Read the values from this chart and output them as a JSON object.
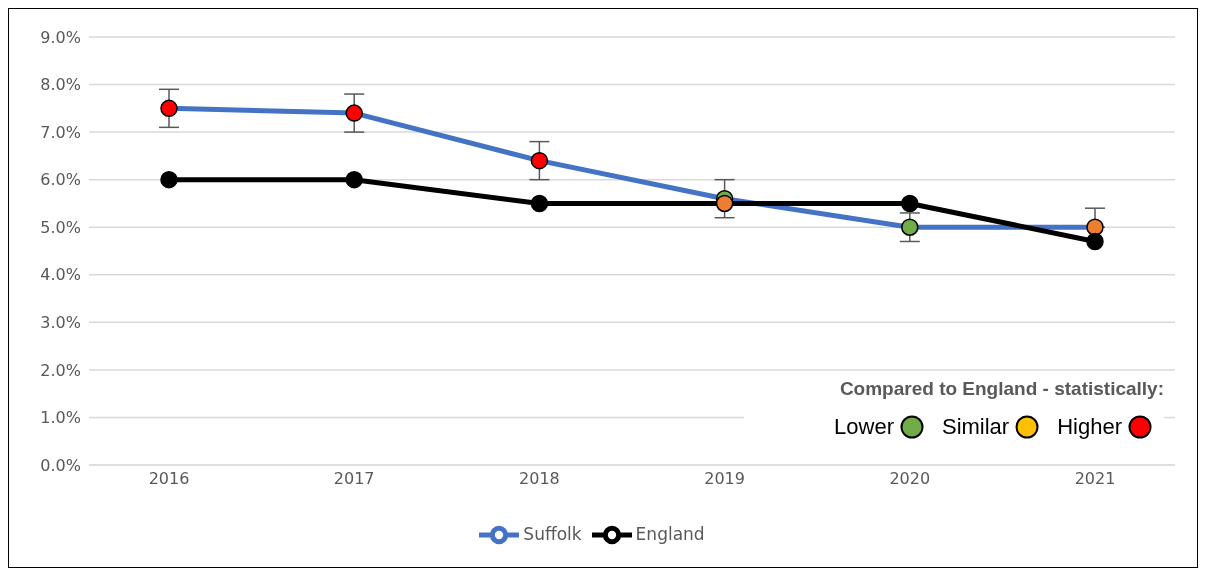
{
  "chart_data": {
    "type": "line",
    "categories": [
      "2016",
      "2017",
      "2018",
      "2019",
      "2020",
      "2021"
    ],
    "ylim": [
      0,
      9
    ],
    "yticks": [
      {
        "value": 0,
        "label": "0.0%"
      },
      {
        "value": 1,
        "label": "1.0%"
      },
      {
        "value": 2,
        "label": "2.0%"
      },
      {
        "value": 3,
        "label": "3.0%"
      },
      {
        "value": 4,
        "label": "4.0%"
      },
      {
        "value": 5,
        "label": "5.0%"
      },
      {
        "value": 6,
        "label": "6.0%"
      },
      {
        "value": 7,
        "label": "7.0%"
      },
      {
        "value": 8,
        "label": "8.0%"
      },
      {
        "value": 9,
        "label": "9.0%"
      }
    ],
    "grid": "y",
    "legend": "bottom",
    "marker": "circle",
    "line_style": "solid",
    "series": [
      {
        "name": "Suffolk",
        "color": "#4472c4",
        "values": [
          7.5,
          7.4,
          6.4,
          5.6,
          5.0,
          5.0
        ],
        "colors": [
          "#ff0000",
          "#ff0000",
          "#ff0000",
          "#70ad47",
          "#70ad47",
          "#ed7d31"
        ],
        "errors": [
          [
            7.1,
            7.9
          ],
          [
            7.0,
            7.8
          ],
          [
            6.0,
            6.8
          ],
          [
            5.2,
            6.0
          ],
          [
            4.7,
            5.3
          ],
          [
            5.0,
            5.4
          ]
        ]
      },
      {
        "name": "England",
        "color": "#000000",
        "values": [
          6.0,
          6.0,
          5.5,
          5.5,
          5.5,
          4.7
        ],
        "colors": [
          "#000000",
          "#000000",
          "#000000",
          "#ed7d31",
          "#000000",
          "#000000"
        ]
      }
    ],
    "annotations": [
      "Compared to England - statistically:",
      "Lower",
      "Similar",
      "Higher"
    ]
  }
}
